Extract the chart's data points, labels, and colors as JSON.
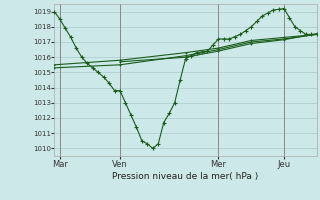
{
  "xlabel": "Pression niveau de la mer( hPa )",
  "bg_color": "#cce8e8",
  "grid_color": "#aacccc",
  "line_color": "#1a5c1a",
  "ylim": [
    1009.5,
    1019.5
  ],
  "yticks": [
    1010,
    1011,
    1012,
    1013,
    1014,
    1015,
    1016,
    1017,
    1018,
    1019
  ],
  "xlim": [
    0,
    24
  ],
  "xtick_positions": [
    0.5,
    6,
    15,
    21
  ],
  "xtick_labels": [
    "Mar",
    "Ven",
    "Mer",
    "Jeu"
  ],
  "vlines": [
    0.5,
    6,
    15,
    21
  ],
  "line1_x": [
    0,
    0.5,
    1,
    1.5,
    2,
    2.5,
    3,
    3.5,
    4,
    4.5,
    5,
    5.5,
    6,
    6.5,
    7,
    7.5,
    8,
    8.5,
    9,
    9.5,
    10,
    10.5,
    11,
    11.5,
    12,
    12.5,
    13,
    13.5,
    14,
    14.5,
    15,
    15.5,
    16,
    16.5,
    17,
    17.5,
    18,
    18.5,
    19,
    19.5,
    20,
    20.5,
    21,
    21.5,
    22,
    22.5,
    23,
    23.5,
    24
  ],
  "line1_y": [
    1019.0,
    1018.5,
    1017.9,
    1017.3,
    1016.6,
    1016.0,
    1015.6,
    1015.3,
    1015.0,
    1014.7,
    1014.3,
    1013.8,
    1013.8,
    1013.0,
    1012.2,
    1011.4,
    1010.5,
    1010.3,
    1010.0,
    1010.3,
    1011.7,
    1012.3,
    1013.0,
    1014.5,
    1015.9,
    1016.1,
    1016.3,
    1016.35,
    1016.4,
    1016.8,
    1017.2,
    1017.2,
    1017.2,
    1017.35,
    1017.5,
    1017.75,
    1018.0,
    1018.35,
    1018.7,
    1018.9,
    1019.1,
    1019.15,
    1019.2,
    1018.6,
    1018.0,
    1017.75,
    1017.5,
    1017.5,
    1017.5
  ],
  "line2_x": [
    0,
    6,
    12,
    15,
    18,
    21,
    24
  ],
  "line2_y": [
    1015.5,
    1015.8,
    1016.3,
    1016.6,
    1017.1,
    1017.3,
    1017.5
  ],
  "line3_x": [
    0,
    6,
    12,
    15,
    18,
    21,
    24
  ],
  "line3_y": [
    1015.3,
    1015.5,
    1016.1,
    1016.5,
    1017.0,
    1017.2,
    1017.5
  ],
  "line4_x": [
    6,
    12,
    15,
    18,
    21,
    24
  ],
  "line4_y": [
    1015.7,
    1016.0,
    1016.4,
    1016.9,
    1017.15,
    1017.55
  ],
  "figsize": [
    3.2,
    2.0
  ],
  "dpi": 100
}
